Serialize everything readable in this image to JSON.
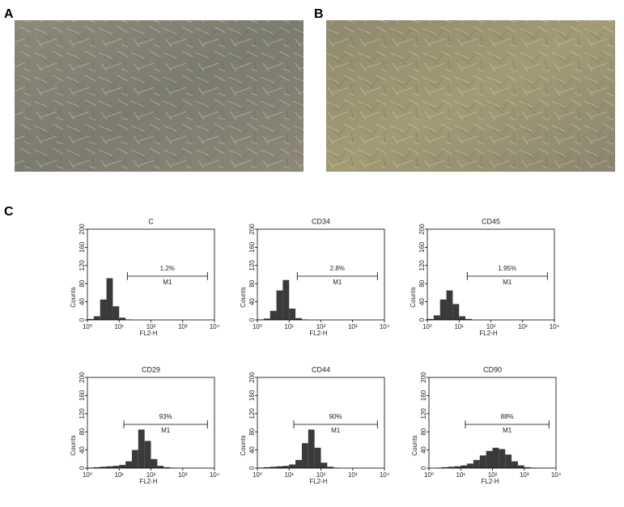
{
  "panels": [
    "A",
    "B",
    "C"
  ],
  "chart_data": [
    {
      "type": "histogram",
      "title": "C",
      "xlabel": "FL2-H",
      "ylabel": "Counts",
      "log_x": true,
      "color": "#3a3a3a",
      "bins": [
        1,
        1.585,
        2.512,
        3.981,
        6.31,
        10,
        15.85,
        25.12,
        39.81,
        63.1,
        100,
        158.5,
        251.2,
        398.1,
        631,
        1000,
        1585,
        2512,
        3981,
        6310,
        10000
      ],
      "counts": [
        2,
        8,
        45,
        92,
        30,
        5,
        1,
        0,
        0,
        0,
        0,
        0,
        0,
        0,
        0,
        0,
        0,
        0,
        0,
        0
      ],
      "xlim": [
        1,
        10000
      ],
      "ylim": [
        0,
        200
      ],
      "xticks": [
        {
          "value": 1,
          "label": "10⁰"
        },
        {
          "value": 10,
          "label": "10¹"
        },
        {
          "value": 100,
          "label": "10²"
        },
        {
          "value": 1000,
          "label": "10³"
        },
        {
          "value": 10000,
          "label": "10⁴"
        }
      ],
      "yticks": [
        0,
        40,
        80,
        120,
        160,
        200
      ],
      "marker": {
        "name": "M1",
        "label": "1.2%",
        "from": 18,
        "to": 6000
      }
    },
    {
      "type": "histogram",
      "title": "CD34",
      "xlabel": "FL2-H",
      "ylabel": "Counts",
      "log_x": true,
      "color": "#3a3a3a",
      "bins": [
        1,
        1.585,
        2.512,
        3.981,
        6.31,
        10,
        15.85,
        25.12,
        39.81,
        63.1,
        100,
        158.5,
        251.2,
        398.1,
        631,
        1000,
        1585,
        2512,
        3981,
        6310,
        10000
      ],
      "counts": [
        1,
        3,
        20,
        65,
        88,
        25,
        4,
        1,
        0,
        0,
        0,
        0,
        0,
        0,
        0,
        0,
        0,
        0,
        0,
        0
      ],
      "xlim": [
        1,
        10000
      ],
      "ylim": [
        0,
        200
      ],
      "xticks": [
        {
          "value": 1,
          "label": "10⁰"
        },
        {
          "value": 10,
          "label": "10¹"
        },
        {
          "value": 100,
          "label": "10²"
        },
        {
          "value": 1000,
          "label": "10³"
        },
        {
          "value": 10000,
          "label": "10⁴"
        }
      ],
      "yticks": [
        0,
        40,
        80,
        120,
        160,
        200
      ],
      "marker": {
        "name": "M1",
        "label": "2.8%",
        "from": 18,
        "to": 6000
      }
    },
    {
      "type": "histogram",
      "title": "CD45",
      "xlabel": "FL2-H",
      "ylabel": "Counts",
      "log_x": true,
      "color": "#3a3a3a",
      "bins": [
        1,
        1.585,
        2.512,
        3.981,
        6.31,
        10,
        15.85,
        25.12,
        39.81,
        63.1,
        100,
        158.5,
        251.2,
        398.1,
        631,
        1000,
        1585,
        2512,
        3981,
        6310,
        10000
      ],
      "counts": [
        2,
        10,
        45,
        65,
        35,
        8,
        2,
        0,
        0,
        0,
        0,
        0,
        0,
        0,
        0,
        0,
        0,
        0,
        0,
        0
      ],
      "xlim": [
        1,
        10000
      ],
      "ylim": [
        0,
        200
      ],
      "xticks": [
        {
          "value": 1,
          "label": "10⁰"
        },
        {
          "value": 10,
          "label": "10¹"
        },
        {
          "value": 100,
          "label": "10²"
        },
        {
          "value": 1000,
          "label": "10³"
        },
        {
          "value": 10000,
          "label": "10⁴"
        }
      ],
      "yticks": [
        0,
        40,
        80,
        120,
        160,
        200
      ],
      "marker": {
        "name": "M1",
        "label": "1.95%",
        "from": 18,
        "to": 6000
      }
    },
    {
      "type": "histogram",
      "title": "CD29",
      "xlabel": "FL2-H",
      "ylabel": "Counts",
      "log_x": true,
      "color": "#3a3a3a",
      "bins": [
        1,
        1.585,
        2.512,
        3.981,
        6.31,
        10,
        15.85,
        25.12,
        39.81,
        63.1,
        100,
        158.5,
        251.2,
        398.1,
        631,
        1000,
        1585,
        2512,
        3981,
        6310,
        10000
      ],
      "counts": [
        1,
        2,
        3,
        4,
        5,
        7,
        15,
        40,
        85,
        60,
        20,
        5,
        2,
        1,
        0,
        0,
        0,
        0,
        0,
        0
      ],
      "xlim": [
        1,
        10000
      ],
      "ylim": [
        0,
        200
      ],
      "xticks": [
        {
          "value": 1,
          "label": "10⁰"
        },
        {
          "value": 10,
          "label": "10¹"
        },
        {
          "value": 100,
          "label": "10²"
        },
        {
          "value": 1000,
          "label": "10³"
        },
        {
          "value": 10000,
          "label": "10⁴"
        }
      ],
      "yticks": [
        0,
        40,
        80,
        120,
        160,
        200
      ],
      "marker": {
        "name": "M1",
        "label": "93%",
        "from": 14,
        "to": 6000
      }
    },
    {
      "type": "histogram",
      "title": "CD44",
      "xlabel": "FL2-H",
      "ylabel": "Counts",
      "log_x": true,
      "color": "#3a3a3a",
      "bins": [
        1,
        1.585,
        2.512,
        3.981,
        6.31,
        10,
        15.85,
        25.12,
        39.81,
        63.1,
        100,
        158.5,
        251.2,
        398.1,
        631,
        1000,
        1585,
        2512,
        3981,
        6310,
        10000
      ],
      "counts": [
        1,
        2,
        3,
        4,
        5,
        8,
        18,
        55,
        85,
        45,
        12,
        3,
        1,
        0,
        0,
        0,
        0,
        0,
        0,
        0
      ],
      "xlim": [
        1,
        10000
      ],
      "ylim": [
        0,
        200
      ],
      "xticks": [
        {
          "value": 1,
          "label": "10⁰"
        },
        {
          "value": 10,
          "label": "10¹"
        },
        {
          "value": 100,
          "label": "10²"
        },
        {
          "value": 1000,
          "label": "10³"
        },
        {
          "value": 10000,
          "label": "10⁴"
        }
      ],
      "yticks": [
        0,
        40,
        80,
        120,
        160,
        200
      ],
      "marker": {
        "name": "M1",
        "label": "90%",
        "from": 14,
        "to": 6000
      }
    },
    {
      "type": "histogram",
      "title": "CD90",
      "xlabel": "FL2-H",
      "ylabel": "Counts",
      "log_x": true,
      "color": "#3a3a3a",
      "bins": [
        1,
        1.585,
        2.512,
        3.981,
        6.31,
        10,
        15.85,
        25.12,
        39.81,
        63.1,
        100,
        158.5,
        251.2,
        398.1,
        631,
        1000,
        1585,
        2512,
        3981,
        6310,
        10000
      ],
      "counts": [
        0,
        1,
        2,
        3,
        4,
        6,
        10,
        18,
        28,
        38,
        45,
        42,
        30,
        15,
        6,
        2,
        1,
        0,
        0,
        0
      ],
      "xlim": [
        1,
        10000
      ],
      "ylim": [
        0,
        200
      ],
      "xticks": [
        {
          "value": 1,
          "label": "10⁰"
        },
        {
          "value": 10,
          "label": "10¹"
        },
        {
          "value": 100,
          "label": "10²"
        },
        {
          "value": 1000,
          "label": "10³"
        },
        {
          "value": 10000,
          "label": "10⁴"
        }
      ],
      "yticks": [
        0,
        40,
        80,
        120,
        160,
        200
      ],
      "marker": {
        "name": "M1",
        "label": "88%",
        "from": 14,
        "to": 6000
      }
    }
  ]
}
